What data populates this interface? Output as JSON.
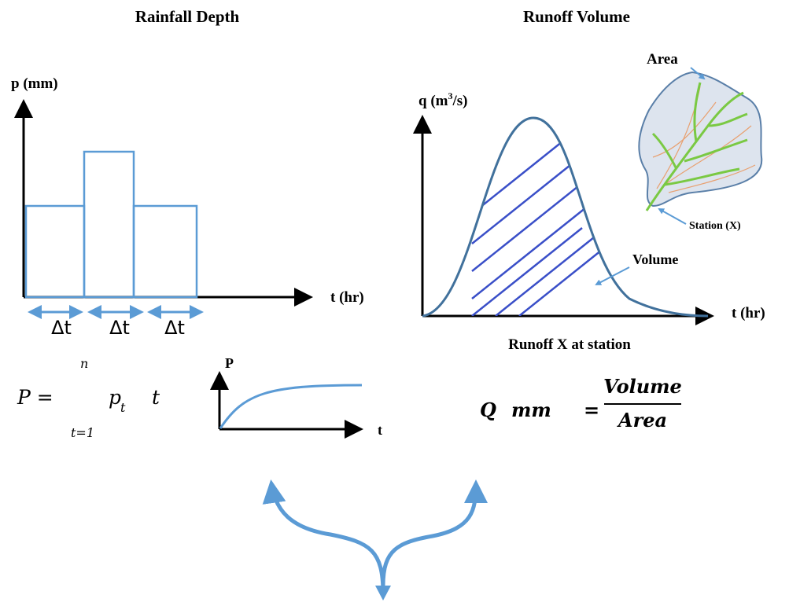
{
  "left": {
    "title": "Rainfall Depth",
    "y_label": "p (mm)",
    "x_label": "t (hr)",
    "intervals": [
      "Δt",
      "Δt",
      "Δt"
    ]
  },
  "formula_p": {
    "lhs": "P =",
    "upper": "n",
    "term": "p",
    "subscript": "t",
    "factor": "t",
    "lower": "t=1"
  },
  "mini_chart": {
    "y_label": "P",
    "x_label": "t"
  },
  "right": {
    "title": "Runoff Volume",
    "y_label_pre": "q (m",
    "y_label_sup": "3",
    "y_label_post": "/s)",
    "x_label": "t (hr)",
    "area_label": "Area",
    "station_label": "Station (X)",
    "volume_label": "Volume",
    "caption": "Runoff X at station"
  },
  "formula_q": {
    "lhs": "Q",
    "unit": "mm",
    "eq": "=",
    "numerator": "Volume",
    "denominator": "Area"
  }
}
